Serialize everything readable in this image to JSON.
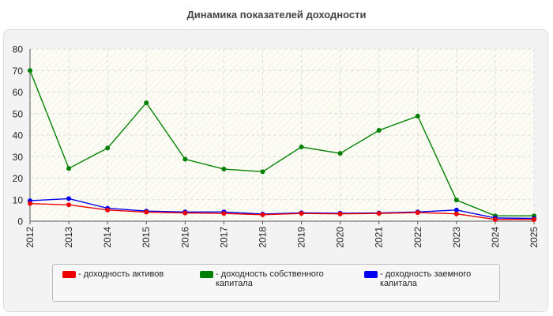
{
  "chart_data": {
    "type": "line",
    "title": "Динамика показателей доходности",
    "xlabel": "",
    "ylabel": "",
    "x": [
      "2012",
      "2013",
      "2014",
      "2015",
      "2016",
      "2017",
      "2018",
      "2019",
      "2020",
      "2021",
      "2022",
      "2023",
      "2024",
      "2025"
    ],
    "ylim": [
      0,
      80
    ],
    "yticks": [
      0,
      10,
      20,
      30,
      40,
      50,
      60,
      70,
      80
    ],
    "grid": true,
    "legend_position": "bottom",
    "series": [
      {
        "name": "доходность собственного капитала",
        "color": "#008000",
        "values": [
          70,
          24.5,
          34,
          55,
          28.8,
          24.2,
          23,
          34.5,
          31.5,
          42.2,
          48.8,
          9.8,
          2.5,
          2.5
        ]
      },
      {
        "name": "доходность заемного капитала",
        "color": "#0000ee",
        "values": [
          9.5,
          10.5,
          6,
          4.7,
          4.3,
          4.3,
          3.3,
          3.9,
          3.7,
          3.8,
          4.3,
          5.2,
          1.5,
          1.3
        ]
      },
      {
        "name": "доходность активов",
        "color": "#ee0000",
        "values": [
          8.2,
          7.6,
          5.2,
          4.2,
          3.8,
          3.6,
          3,
          3.6,
          3.4,
          3.6,
          4,
          3.4,
          0.8,
          0.8
        ]
      }
    ]
  },
  "legend": {
    "items": [
      {
        "label": "- доходность активов",
        "color": "#ee0000"
      },
      {
        "label": "- доходность собственного капитала",
        "color": "#008000"
      },
      {
        "label": "- доходность заемного капитала",
        "color": "#0000ee"
      }
    ]
  }
}
